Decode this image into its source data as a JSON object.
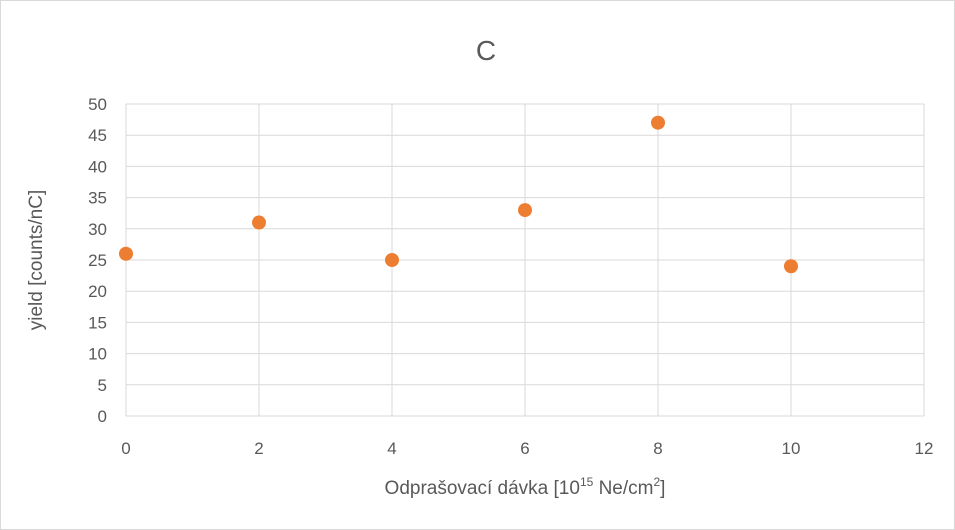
{
  "chart_data": {
    "type": "scatter",
    "title": "C",
    "xlabel": {
      "pre": "Odprašovací dávka [10",
      "sup1": "15",
      "mid": " Ne/cm",
      "sup2": "2",
      "post": "]"
    },
    "ylabel": "yield [counts/nC]",
    "xlim": [
      0,
      12
    ],
    "ylim": [
      0,
      50
    ],
    "x_ticks": [
      "0",
      "2",
      "4",
      "6",
      "8",
      "10",
      "12"
    ],
    "y_ticks": [
      "0",
      "5",
      "10",
      "15",
      "20",
      "25",
      "30",
      "35",
      "40",
      "45",
      "50"
    ],
    "grid": true,
    "legend": "none",
    "marker_color": "#ed7d31",
    "gridline_color": "#d9d9d9",
    "points": [
      {
        "x": 0,
        "y": 26
      },
      {
        "x": 2,
        "y": 31
      },
      {
        "x": 4,
        "y": 25
      },
      {
        "x": 6,
        "y": 33
      },
      {
        "x": 8,
        "y": 47
      },
      {
        "x": 10,
        "y": 24
      }
    ]
  }
}
